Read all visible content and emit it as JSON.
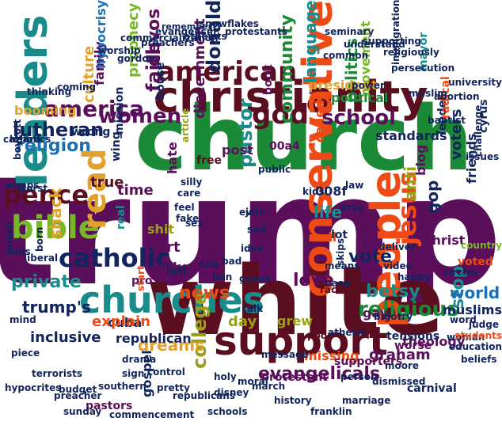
{
  "palette": {
    "purple": "#5b0f5a",
    "orange": "#ee4a15",
    "maroon": "#5a0e20",
    "green": "#1b8a36",
    "teal": "#1a8b8b",
    "blue": "#1c6fb5",
    "navy": "#12245e",
    "olive": "#9aa016",
    "lime": "#78b828",
    "gold": "#e1a12c",
    "black": "#222222"
  },
  "words": [
    {
      "text": "trump",
      "color": "purple"
    },
    {
      "text": "church",
      "color": "green"
    },
    {
      "text": "white",
      "color": "maroon"
    },
    {
      "text": "christianity",
      "color": "maroon"
    },
    {
      "text": "support",
      "color": "maroon"
    },
    {
      "text": "conservative",
      "color": "orange"
    },
    {
      "text": "leaders",
      "color": "teal"
    },
    {
      "text": "churches",
      "color": "teal"
    },
    {
      "text": "people",
      "color": "orange"
    },
    {
      "text": "american",
      "color": "maroon"
    },
    {
      "text": "bible",
      "color": "lime"
    },
    {
      "text": "read",
      "color": "gold"
    },
    {
      "text": "catholic",
      "color": "navy"
    },
    {
      "text": "god",
      "color": "maroon"
    },
    {
      "text": "school",
      "color": "purple"
    },
    {
      "text": "america",
      "color": "purple"
    },
    {
      "text": "pence",
      "color": "maroon"
    },
    {
      "text": "women",
      "color": "purple"
    },
    {
      "text": "jesus",
      "color": "orange"
    },
    {
      "text": "religious",
      "color": "green"
    },
    {
      "text": "evangelicals",
      "color": "purple"
    },
    {
      "text": "college",
      "color": "olive"
    },
    {
      "text": "pastor",
      "color": "teal"
    },
    {
      "text": "faith",
      "color": "purple"
    },
    {
      "text": "devos",
      "color": "purple"
    },
    {
      "text": "lutheran",
      "color": "navy"
    },
    {
      "text": "religion",
      "color": "blue"
    },
    {
      "text": "news",
      "color": "orange"
    },
    {
      "text": "love",
      "color": "purple"
    },
    {
      "text": "vote",
      "color": "navy"
    },
    {
      "text": "betsy",
      "color": "teal"
    },
    {
      "text": "stop",
      "color": "teal"
    },
    {
      "text": "shack",
      "color": "gold"
    },
    {
      "text": "donald",
      "color": "navy"
    },
    {
      "text": "community",
      "color": "green"
    },
    {
      "text": "language",
      "color": "teal"
    },
    {
      "text": "politics",
      "color": "green"
    },
    {
      "text": "gop",
      "color": "navy"
    },
    {
      "text": "world",
      "color": "blue"
    },
    {
      "text": "dreams",
      "color": "gold"
    },
    {
      "text": "trump's",
      "color": "navy"
    },
    {
      "text": "private",
      "color": "teal"
    },
    {
      "text": "culture",
      "color": "gold"
    },
    {
      "text": "discernment",
      "color": "purple"
    },
    {
      "text": "family",
      "color": "purple"
    },
    {
      "text": "time",
      "color": "purple"
    },
    {
      "text": "life",
      "color": "teal"
    },
    {
      "text": "008f",
      "color": "navy"
    },
    {
      "text": "00a4",
      "color": "purple"
    },
    {
      "text": "anti",
      "color": "olive"
    },
    {
      "text": "blog",
      "color": "purple"
    },
    {
      "text": "called",
      "color": "orange"
    },
    {
      "text": "christ",
      "color": "purple"
    },
    {
      "text": "voters",
      "color": "navy"
    },
    {
      "text": "friends",
      "color": "navy"
    },
    {
      "text": "art",
      "color": "purple"
    },
    {
      "text": "mike",
      "color": "purple"
    },
    {
      "text": "cuba",
      "color": "navy"
    },
    {
      "text": "republican",
      "color": "navy"
    },
    {
      "text": "explain",
      "color": "orange"
    },
    {
      "text": "inclusive",
      "color": "navy"
    },
    {
      "text": "missing",
      "color": "orange"
    },
    {
      "text": "graham",
      "color": "purple"
    },
    {
      "text": "gay",
      "color": "purple"
    },
    {
      "text": "muslims",
      "color": "navy"
    },
    {
      "text": "standards",
      "color": "navy"
    },
    {
      "text": "movement",
      "color": "lime"
    },
    {
      "text": "prophecy",
      "color": "lime"
    },
    {
      "text": "hate",
      "color": "purple"
    },
    {
      "text": "true",
      "color": "maroon"
    },
    {
      "text": "post",
      "color": "purple"
    },
    {
      "text": "protestant",
      "color": "purple"
    },
    {
      "text": "theology",
      "color": "purple"
    },
    {
      "text": "pastors",
      "color": "purple"
    },
    {
      "text": "gospel",
      "color": "navy"
    },
    {
      "text": "supporters",
      "color": "purple"
    },
    {
      "text": "president",
      "color": "gold"
    },
    {
      "text": "hypocrisy",
      "color": "blue"
    },
    {
      "text": "house",
      "color": "navy"
    },
    {
      "text": "book",
      "color": "purple"
    },
    {
      "text": "booming",
      "color": "gold"
    },
    {
      "text": "wrong",
      "color": "navy"
    },
    {
      "text": "mission",
      "color": "navy"
    },
    {
      "text": "wing",
      "color": "navy"
    },
    {
      "text": "leader",
      "color": "navy"
    },
    {
      "text": "radical",
      "color": "orange"
    },
    {
      "text": "cyrus",
      "color": "navy"
    },
    {
      "text": "tensions",
      "color": "navy"
    },
    {
      "text": "carnival",
      "color": "navy"
    },
    {
      "text": "worse",
      "color": "purple"
    },
    {
      "text": "left",
      "color": "navy"
    },
    {
      "text": "call",
      "color": "orange"
    },
    {
      "text": "lot",
      "color": "navy"
    },
    {
      "text": "day",
      "color": "olive"
    },
    {
      "text": "grew",
      "color": "olive"
    },
    {
      "text": "skips",
      "color": "navy"
    },
    {
      "text": "real",
      "color": "teal"
    },
    {
      "text": "pro",
      "color": "purple"
    },
    {
      "text": "gordon",
      "color": "navy"
    },
    {
      "text": "preachers",
      "color": "navy"
    },
    {
      "text": "worship",
      "color": "navy"
    },
    {
      "text": "atheists",
      "color": "navy"
    },
    {
      "text": "protestants",
      "color": "navy"
    },
    {
      "text": "evangelism",
      "color": "navy"
    },
    {
      "text": "snowflakes",
      "color": "navy"
    },
    {
      "text": "commercialization",
      "color": "navy"
    },
    {
      "text": "remember",
      "color": "navy"
    },
    {
      "text": "political",
      "color": "green"
    },
    {
      "text": "muslim",
      "color": "navy"
    },
    {
      "text": "baptist",
      "color": "navy"
    },
    {
      "text": "university",
      "color": "navy"
    },
    {
      "text": "mayor",
      "color": "teal"
    },
    {
      "text": "free",
      "color": "maroon"
    },
    {
      "text": "fake",
      "color": "navy"
    },
    {
      "text": "care",
      "color": "navy"
    },
    {
      "text": "feel",
      "color": "navy"
    },
    {
      "text": "means",
      "color": "navy"
    },
    {
      "text": "pray",
      "color": "navy"
    },
    {
      "text": "law",
      "color": "navy"
    },
    {
      "text": "ban",
      "color": "navy"
    },
    {
      "text": "bad",
      "color": "navy"
    },
    {
      "text": "talk",
      "color": "navy"
    },
    {
      "text": "rule",
      "color": "navy"
    },
    {
      "text": "shit",
      "color": "olive"
    },
    {
      "text": "guess",
      "color": "navy"
    },
    {
      "text": "poor",
      "color": "maroon"
    },
    {
      "text": "racist",
      "color": "maroon"
    },
    {
      "text": "message",
      "color": "navy"
    },
    {
      "text": "dismissed",
      "color": "navy"
    },
    {
      "text": "atheist",
      "color": "navy"
    },
    {
      "text": "history",
      "color": "navy"
    },
    {
      "text": "moral",
      "color": "navy"
    },
    {
      "text": "control",
      "color": "navy"
    },
    {
      "text": "southern",
      "color": "navy"
    },
    {
      "text": "pretty",
      "color": "navy"
    },
    {
      "text": "republicans",
      "color": "navy"
    },
    {
      "text": "commencement",
      "color": "navy"
    },
    {
      "text": "preacher",
      "color": "navy"
    },
    {
      "text": "terrorists",
      "color": "navy"
    },
    {
      "text": "budget",
      "color": "navy"
    },
    {
      "text": "sunday",
      "color": "navy"
    },
    {
      "text": "hypocrites",
      "color": "navy"
    },
    {
      "text": "marriage",
      "color": "navy"
    },
    {
      "text": "franklin",
      "color": "navy"
    },
    {
      "text": "moore",
      "color": "navy"
    },
    {
      "text": "woman",
      "color": "navy"
    },
    {
      "text": "beliefs",
      "color": "navy"
    },
    {
      "text": "word",
      "color": "navy"
    },
    {
      "text": "voted",
      "color": "orange"
    },
    {
      "text": "thinking",
      "color": "navy"
    },
    {
      "text": "coming",
      "color": "navy"
    },
    {
      "text": "article",
      "color": "olive"
    },
    {
      "text": "schools",
      "color": "navy"
    },
    {
      "text": "catholics",
      "color": "navy"
    },
    {
      "text": "piece",
      "color": "navy"
    },
    {
      "text": "start",
      "color": "orange"
    },
    {
      "text": "silly",
      "color": "navy"
    },
    {
      "text": "liberal",
      "color": "navy"
    },
    {
      "text": "born",
      "color": "navy"
    },
    {
      "text": "kids",
      "color": "navy"
    },
    {
      "text": "evil",
      "color": "navy"
    },
    {
      "text": "join",
      "color": "navy"
    },
    {
      "text": "sad",
      "color": "navy"
    },
    {
      "text": "person",
      "color": "navy"
    },
    {
      "text": "country",
      "color": "lime"
    },
    {
      "text": "circles",
      "color": "navy"
    },
    {
      "text": "disney",
      "color": "navy"
    },
    {
      "text": "march",
      "color": "navy"
    },
    {
      "text": "happy",
      "color": "navy"
    },
    {
      "text": "public",
      "color": "navy"
    },
    {
      "text": "video",
      "color": "navy"
    },
    {
      "text": "judge",
      "color": "navy"
    },
    {
      "text": "students",
      "color": "orange"
    },
    {
      "text": "education",
      "color": "navy"
    },
    {
      "text": "seminary",
      "color": "navy"
    },
    {
      "text": "persecution",
      "color": "navy"
    },
    {
      "text": "mind",
      "color": "navy"
    },
    {
      "text": "raised",
      "color": "navy"
    },
    {
      "text": "sign",
      "color": "navy"
    },
    {
      "text": "drama",
      "color": "navy"
    },
    {
      "text": "base",
      "color": "navy"
    },
    {
      "text": "deliver",
      "color": "navy"
    },
    {
      "text": "fails",
      "color": "navy"
    },
    {
      "text": "common",
      "color": "navy"
    },
    {
      "text": "understand",
      "color": "navy"
    },
    {
      "text": "supporting",
      "color": "navy"
    },
    {
      "text": "religiously",
      "color": "navy"
    },
    {
      "text": "immigration",
      "color": "navy"
    },
    {
      "text": "power",
      "color": "navy"
    },
    {
      "text": "issues",
      "color": "navy"
    },
    {
      "text": "challenge",
      "color": "navy"
    },
    {
      "text": "idea",
      "color": "navy"
    },
    {
      "text": "sex",
      "color": "navy"
    },
    {
      "text": "heard",
      "color": "navy"
    },
    {
      "text": "abortion",
      "color": "navy"
    },
    {
      "text": "wimps",
      "color": "navy"
    },
    {
      "text": "boycott",
      "color": "navy"
    },
    {
      "text": "worst",
      "color": "navy"
    },
    {
      "text": "holy",
      "color": "navy"
    },
    {
      "text": "bigotry",
      "color": "navy"
    }
  ]
}
